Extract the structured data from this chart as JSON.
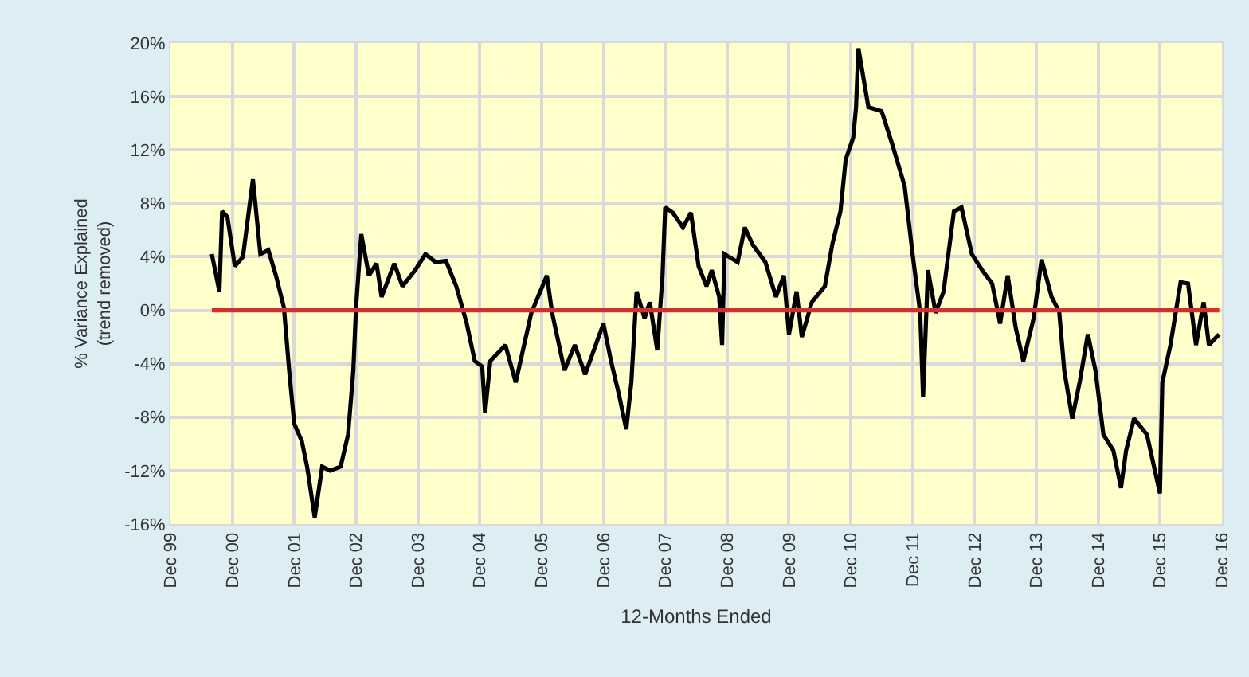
{
  "chart_data": {
    "type": "line",
    "xlabel": "12-Months Ended",
    "ylabel": "% Variance Explained\n(trend removed)",
    "x": [
      "2000-08",
      "2000-09-15",
      "2000-10",
      "2000-11",
      "2000-12-15",
      "2001-02",
      "2001-04",
      "2001-05-15",
      "2001-07",
      "2001-08-15",
      "2001-10",
      "2001-11",
      "2001-12",
      "2002-01-15",
      "2002-02-15",
      "2002-04",
      "2002-05-15",
      "2002-07",
      "2002-09",
      "2002-10-15",
      "2002-11-15",
      "2002-12",
      "2003-01",
      "2003-02-15",
      "2003-04",
      "2003-05",
      "2003-07-15",
      "2003-09",
      "2003-11-15",
      "2004-01-15",
      "2004-03-15",
      "2004-05-15",
      "2004-07-15",
      "2004-09-15",
      "2004-11",
      "2004-12-15",
      "2005-01",
      "2005-02",
      "2005-05",
      "2005-07",
      "2005-10",
      "2006-01",
      "2006-02",
      "2006-04-15",
      "2006-06-15",
      "2006-08-15",
      "2006-12",
      "2007-01-15",
      "2007-03",
      "2007-04-15",
      "2007-05-15",
      "2007-06-15",
      "2007-08",
      "2007-09",
      "2007-10-15",
      "2007-11-15",
      "2007-12",
      "2008-01-15",
      "2008-03-15",
      "2008-05",
      "2008-06-15",
      "2008-08",
      "2008-09",
      "2008-10-15",
      "2008-11",
      "2008-11-15",
      "2009-02",
      "2009-03-15",
      "2009-05",
      "2009-07-15",
      "2009-09-15",
      "2009-11",
      "2009-12",
      "2010-01-15",
      "2010-02-15",
      "2010-04-15",
      "2010-07",
      "2010-08-15",
      "2010-10",
      "2010-11",
      "2010-12-15",
      "2011-01",
      "2011-01-15",
      "2011-03-15",
      "2011-06",
      "2011-08",
      "2011-10-15",
      "2011-12",
      "2012-01-15",
      "2012-02",
      "2012-03",
      "2012-04-15",
      "2012-06",
      "2012-08",
      "2012-09-15",
      "2012-11-15",
      "2013-01-15",
      "2013-03-15",
      "2013-05",
      "2013-06-15",
      "2013-08",
      "2013-09-15",
      "2013-11-15",
      "2014-01",
      "2014-03",
      "2014-04-15",
      "2014-05-15",
      "2014-07",
      "2014-08-15",
      "2014-10",
      "2014-11-15",
      "2015-01",
      "2015-03",
      "2015-04-15",
      "2015-05-15",
      "2015-07",
      "2015-09-15",
      "2015-12",
      "2015-12-15",
      "2016-02",
      "2016-04",
      "2016-05-15",
      "2016-07",
      "2016-08-15",
      "2016-09-15",
      "2016-11-15"
    ],
    "series": [
      {
        "color": "#000000",
        "values": [
          4.2,
          1.4,
          7.4,
          7.0,
          3.3,
          4.0,
          9.8,
          4.2,
          4.5,
          2.6,
          0.2,
          -4.5,
          -8.5,
          -9.8,
          -11.7,
          -15.5,
          -11.7,
          -12,
          -11.7,
          -9.3,
          -4.5,
          0.2,
          5.7,
          2.6,
          3.5,
          1.0,
          3.5,
          1.8,
          3.0,
          4.2,
          3.6,
          3.7,
          1.8,
          -1.0,
          -3.8,
          -4.2,
          -7.7,
          -3.8,
          -2.6,
          -5.4,
          -0.2,
          2.6,
          -0.2,
          -4.5,
          -2.6,
          -4.8,
          -1.0,
          -3.8,
          -6.2,
          -8.9,
          -5.4,
          1.4,
          -0.6,
          0.6,
          -3.0,
          2.6,
          7.7,
          7.3,
          6.2,
          7.3,
          3.3,
          1.8,
          3.0,
          1.0,
          -2.6,
          4.2,
          3.6,
          6.2,
          4.9,
          3.6,
          1.0,
          2.6,
          -1.8,
          1.4,
          -2.0,
          0.6,
          1.8,
          5.0,
          7.4,
          11.3,
          12.9,
          15.2,
          19.6,
          15.2,
          14.9,
          12.5,
          9.3,
          4.2,
          -0.2,
          -6.5,
          3.0,
          -0.2,
          1.4,
          7.4,
          7.7,
          4.2,
          3.0,
          2.0,
          -1.0,
          2.6,
          -1.3,
          -3.8,
          -0.6,
          3.8,
          1.0,
          -0.1,
          -4.5,
          -8.1,
          -5.3,
          -1.8,
          -4.5,
          -9.3,
          -10.5,
          -13.3,
          -10.5,
          -8.1,
          -9.3,
          -13.7,
          -5.4,
          -2.6,
          2.1,
          2.0,
          -2.6,
          0.6,
          -2.6,
          -1.8
        ]
      },
      {
        "color": "#d03030",
        "x": [
          "2000-08",
          "2016-11-15"
        ],
        "values": [
          0,
          0
        ]
      }
    ],
    "xlim": [
      "1999-12",
      "2016-12"
    ],
    "xticks": [
      {
        "value": "1999-12",
        "label": "Dec 99"
      },
      {
        "value": "2000-12",
        "label": "Dec 00"
      },
      {
        "value": "2001-12",
        "label": "Dec 01"
      },
      {
        "value": "2002-12",
        "label": "Dec 02"
      },
      {
        "value": "2003-12",
        "label": "Dec 03"
      },
      {
        "value": "2004-12",
        "label": "Dec 04"
      },
      {
        "value": "2005-12",
        "label": "Dec 05"
      },
      {
        "value": "2006-12",
        "label": "Dec 06"
      },
      {
        "value": "2007-12",
        "label": "Dec 07"
      },
      {
        "value": "2008-12",
        "label": "Dec 08"
      },
      {
        "value": "2009-12",
        "label": "Dec 09"
      },
      {
        "value": "2010-12",
        "label": "Dec 10"
      },
      {
        "value": "2011-12",
        "label": "Dec 11"
      },
      {
        "value": "2012-12",
        "label": "Dec 12"
      },
      {
        "value": "2013-12",
        "label": "Dec 13"
      },
      {
        "value": "2014-12",
        "label": "Dec 14"
      },
      {
        "value": "2015-12",
        "label": "Dec 15"
      },
      {
        "value": "2016-12",
        "label": "Dec 16"
      }
    ],
    "ylim": [
      -16,
      20
    ],
    "yticks": [
      {
        "value": -16,
        "label": "-16%"
      },
      {
        "value": -12,
        "label": "-12%"
      },
      {
        "value": -8,
        "label": "-8%"
      },
      {
        "value": -4,
        "label": "-4%"
      },
      {
        "value": 0,
        "label": "0%"
      },
      {
        "value": 4,
        "label": "4%"
      },
      {
        "value": 8,
        "label": "8%"
      },
      {
        "value": 12,
        "label": "12%"
      },
      {
        "value": 16,
        "label": "16%"
      },
      {
        "value": 20,
        "label": "20%"
      }
    ],
    "grid": true,
    "marker": "none",
    "line_style": "solid"
  }
}
